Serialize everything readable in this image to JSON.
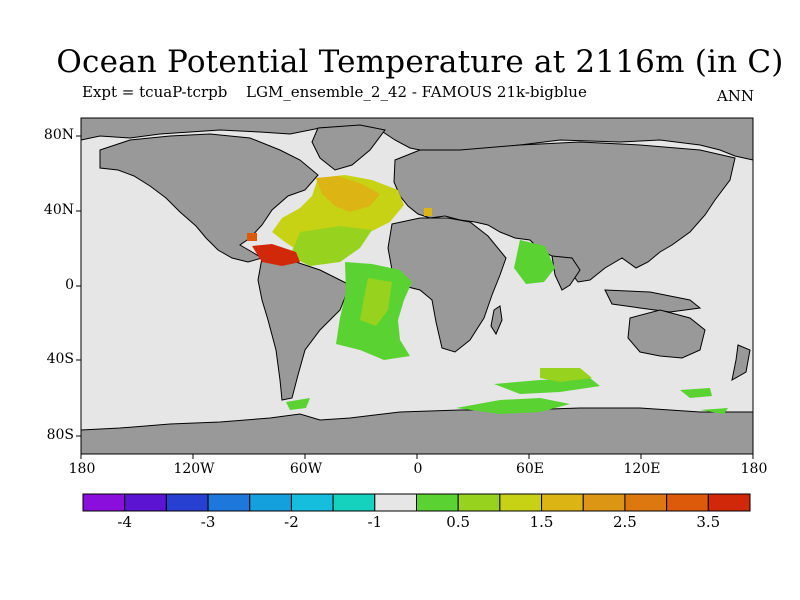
{
  "header": {
    "title": "Ocean Potential Temperature at 2116m (in C)",
    "expt": "Expt = tcuaP-tcrpb",
    "ensemble": "LGM_ensemble_2_42 - FAMOUS 21k-bigblue",
    "period": "ANN"
  },
  "map": {
    "lat_labels": [
      "80N",
      "40N",
      "0",
      "40S",
      "80S"
    ],
    "lon_labels": [
      "180",
      "120W",
      "60W",
      "0",
      "60E",
      "120E",
      "180"
    ],
    "colors": {
      "ocean_default": "#e6e6e6",
      "land": "#999999",
      "coast": "#000000"
    }
  },
  "colorbar": {
    "labels": [
      "-4",
      "-3",
      "-2",
      "-1",
      "0.5",
      "1.5",
      "2.5",
      "3.5"
    ],
    "colors": [
      "#8a0fdc",
      "#5a14d2",
      "#2840d2",
      "#1e78dc",
      "#14a0dc",
      "#14bedc",
      "#14d2be",
      "#e6e6e6",
      "#5ad232",
      "#96d21e",
      "#c8d214",
      "#dcb414",
      "#dc9614",
      "#dc780f",
      "#dc5a0a",
      "#d2280a"
    ]
  }
}
